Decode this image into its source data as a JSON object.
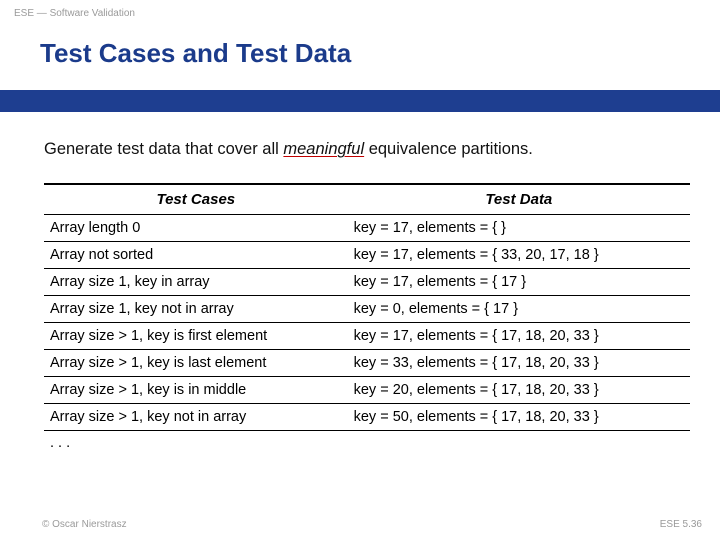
{
  "header_label": "ESE — Software Validation",
  "title": "Test Cases and Test Data",
  "lead_prefix": "Generate test data that cover all ",
  "lead_emph": "meaningful",
  "lead_suffix": " equivalence partitions.",
  "table": {
    "col1_header": "Test Cases",
    "col2_header": "Test Data",
    "rows": [
      {
        "c1": "Array length 0",
        "c2": "key = 17, elements = { }"
      },
      {
        "c1": "Array not sorted",
        "c2": "key = 17, elements = { 33, 20, 17, 18 }"
      },
      {
        "c1": "Array size 1, key in array",
        "c2": "key = 17, elements = { 17 }"
      },
      {
        "c1": "Array size 1, key not in array",
        "c2": "key = 0, elements = { 17 }"
      },
      {
        "c1": "Array size > 1, key is first element",
        "c2": "key = 17, elements = { 17, 18, 20, 33 }"
      },
      {
        "c1": "Array size > 1, key is last element",
        "c2": "key = 33, elements = { 17, 18, 20, 33 }"
      },
      {
        "c1": "Array size > 1, key is in middle",
        "c2": "key = 20, elements = { 17, 18, 20, 33 }"
      },
      {
        "c1": "Array size > 1, key not in array",
        "c2": "key = 50, elements = { 17, 18, 20, 33 }"
      }
    ],
    "ellipsis": ". . ."
  },
  "footer_left": "© Oscar Nierstrasz",
  "footer_right": "ESE 5.36",
  "colors": {
    "title_color": "#1b3b8b",
    "blue_bar": "#1e3e90",
    "muted_text": "#9a9a9a",
    "underline_color": "#c00000",
    "body_text": "#111111",
    "rule_color": "#000000",
    "background": "#ffffff"
  }
}
